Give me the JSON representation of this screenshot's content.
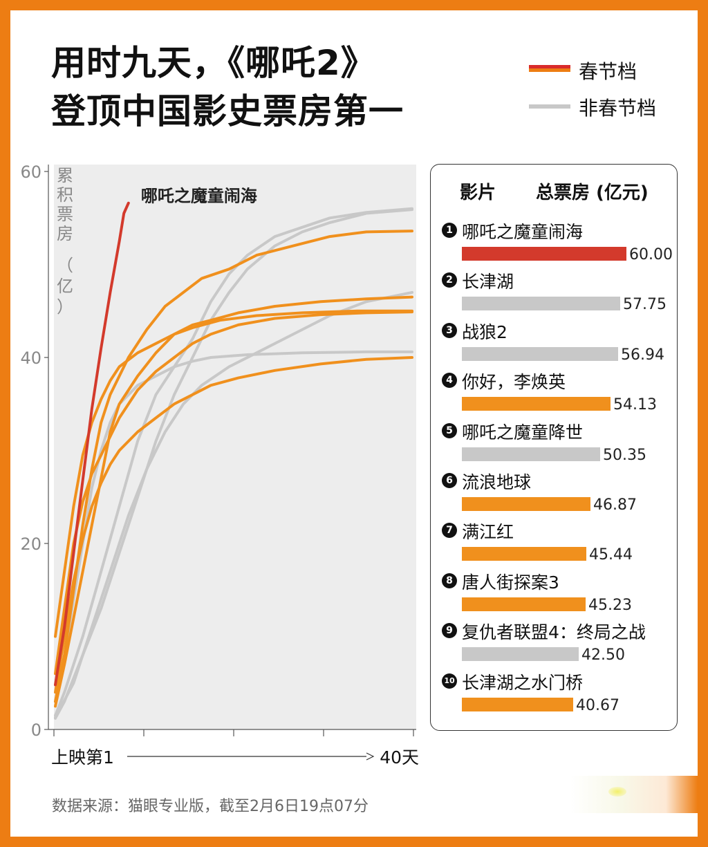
{
  "title": [
    "用时九天，《哪吒2》",
    "登顶中国影史票房第一"
  ],
  "legend": [
    {
      "label": "春节档",
      "color": "#ED7D13",
      "accent": "#D92B2B"
    },
    {
      "label": "非春节档",
      "color": "#C8C8C8"
    }
  ],
  "chart_data": {
    "type": "line",
    "ylabel": "累积票房（亿）",
    "ylim": [
      0,
      60
    ],
    "yticks": [
      0,
      20,
      40,
      60
    ],
    "x_start_label": "上映第1",
    "x_end_label": "40天",
    "xlim": [
      1,
      40
    ],
    "highlight_label": "哪吒之魔童闹海",
    "series": [
      {
        "name": "哪吒之魔童闹海",
        "kind": "highlight",
        "color": "#D33A2C",
        "points": [
          [
            1,
            4.8
          ],
          [
            2,
            11
          ],
          [
            3,
            19
          ],
          [
            4,
            26.8
          ],
          [
            5,
            34.5
          ],
          [
            6,
            41
          ],
          [
            7,
            47
          ],
          [
            8,
            52.5
          ],
          [
            8.5,
            55.5
          ],
          [
            9,
            56.6
          ]
        ]
      },
      {
        "name": "长津湖",
        "kind": "non",
        "color": "#C8C8C8",
        "points": [
          [
            1,
            1.5
          ],
          [
            2,
            4
          ],
          [
            4,
            10
          ],
          [
            6,
            17
          ],
          [
            8,
            24
          ],
          [
            10,
            31
          ],
          [
            12,
            36
          ],
          [
            14,
            39
          ],
          [
            16,
            42
          ],
          [
            18,
            46
          ],
          [
            20,
            49
          ],
          [
            22,
            51
          ],
          [
            25,
            53
          ],
          [
            28,
            54
          ],
          [
            31,
            55
          ],
          [
            35,
            55.6
          ],
          [
            40,
            56
          ]
        ]
      },
      {
        "name": "战狼2",
        "kind": "non",
        "color": "#C8C8C8",
        "points": [
          [
            1,
            1.2
          ],
          [
            2,
            3
          ],
          [
            4,
            8
          ],
          [
            6,
            13
          ],
          [
            8,
            19
          ],
          [
            10,
            25
          ],
          [
            12,
            31
          ],
          [
            14,
            36
          ],
          [
            16,
            40
          ],
          [
            18,
            44
          ],
          [
            20,
            47
          ],
          [
            22,
            49.5
          ],
          [
            25,
            52
          ],
          [
            28,
            53.5
          ],
          [
            31,
            54.5
          ],
          [
            35,
            55.5
          ],
          [
            40,
            55.9
          ]
        ]
      },
      {
        "name": "哪吒之魔童降世",
        "kind": "non",
        "color": "#C8C8C8",
        "points": [
          [
            1,
            1.3
          ],
          [
            3,
            5
          ],
          [
            5,
            11
          ],
          [
            7,
            17
          ],
          [
            9,
            23
          ],
          [
            11,
            28
          ],
          [
            13,
            32
          ],
          [
            15,
            35
          ],
          [
            17,
            37
          ],
          [
            20,
            39
          ],
          [
            23,
            40.5
          ],
          [
            27,
            42.5
          ],
          [
            31,
            44.5
          ],
          [
            35,
            46
          ],
          [
            40,
            47
          ]
        ]
      },
      {
        "name": "复仇者联盟4：终局之战",
        "kind": "non",
        "color": "#C8C8C8",
        "points": [
          [
            1,
            3
          ],
          [
            2,
            8
          ],
          [
            3,
            14
          ],
          [
            4,
            20
          ],
          [
            5,
            26
          ],
          [
            6,
            30
          ],
          [
            7,
            33
          ],
          [
            8,
            35
          ],
          [
            10,
            37
          ],
          [
            12,
            38
          ],
          [
            14,
            39
          ],
          [
            16,
            39.6
          ],
          [
            18,
            40
          ],
          [
            22,
            40.3
          ],
          [
            28,
            40.5
          ],
          [
            35,
            40.6
          ],
          [
            40,
            40.6
          ]
        ]
      },
      {
        "name": "你好，李焕英",
        "kind": "spring",
        "color": "#F0901D",
        "points": [
          [
            1,
            3
          ],
          [
            2,
            8
          ],
          [
            3,
            15
          ],
          [
            4,
            22
          ],
          [
            5,
            28
          ],
          [
            6,
            33
          ],
          [
            7,
            36
          ],
          [
            9,
            40
          ],
          [
            11,
            43
          ],
          [
            13,
            45.5
          ],
          [
            15,
            47
          ],
          [
            17,
            48.5
          ],
          [
            20,
            49.5
          ],
          [
            23,
            51
          ],
          [
            27,
            52
          ],
          [
            31,
            53
          ],
          [
            35,
            53.5
          ],
          [
            40,
            53.6
          ]
        ]
      },
      {
        "name": "流浪地球",
        "kind": "spring",
        "color": "#F0901D",
        "points": [
          [
            1,
            2.5
          ],
          [
            2,
            7
          ],
          [
            3,
            12
          ],
          [
            4,
            17
          ],
          [
            5,
            22
          ],
          [
            6,
            27
          ],
          [
            7,
            32
          ],
          [
            8,
            35
          ],
          [
            10,
            38
          ],
          [
            12,
            40.5
          ],
          [
            14,
            42.5
          ],
          [
            16,
            43.5
          ],
          [
            18,
            44
          ],
          [
            21,
            44.8
          ],
          [
            25,
            45.5
          ],
          [
            30,
            46
          ],
          [
            35,
            46.3
          ],
          [
            40,
            46.5
          ]
        ]
      },
      {
        "name": "满江红",
        "kind": "spring",
        "color": "#F0901D",
        "points": [
          [
            1,
            10
          ],
          [
            2,
            17
          ],
          [
            3,
            24
          ],
          [
            4,
            29.5
          ],
          [
            5,
            33
          ],
          [
            6,
            35.5
          ],
          [
            7,
            37.5
          ],
          [
            8,
            39
          ],
          [
            10,
            40.5
          ],
          [
            12,
            41.5
          ],
          [
            14,
            42.5
          ],
          [
            16,
            43.2
          ],
          [
            19,
            44
          ],
          [
            23,
            44.5
          ],
          [
            28,
            44.8
          ],
          [
            34,
            45
          ],
          [
            40,
            45
          ]
        ]
      },
      {
        "name": "唐人街探案3",
        "kind": "spring",
        "color": "#F0901D",
        "points": [
          [
            1,
            6
          ],
          [
            2,
            13
          ],
          [
            3,
            20
          ],
          [
            4,
            24.5
          ],
          [
            5,
            27.5
          ],
          [
            6,
            29.5
          ],
          [
            7,
            31.5
          ],
          [
            8,
            33.5
          ],
          [
            10,
            36.5
          ],
          [
            12,
            38.5
          ],
          [
            14,
            40
          ],
          [
            16,
            41.5
          ],
          [
            18,
            42.5
          ],
          [
            21,
            43.5
          ],
          [
            25,
            44.2
          ],
          [
            30,
            44.6
          ],
          [
            35,
            44.8
          ],
          [
            40,
            44.9
          ]
        ]
      },
      {
        "name": "长津湖之水门桥",
        "kind": "spring",
        "color": "#F0901D",
        "points": [
          [
            1,
            4
          ],
          [
            2,
            10
          ],
          [
            3,
            16
          ],
          [
            4,
            20.5
          ],
          [
            5,
            24
          ],
          [
            6,
            26.5
          ],
          [
            7,
            28.5
          ],
          [
            8,
            30
          ],
          [
            10,
            32
          ],
          [
            12,
            33.5
          ],
          [
            14,
            35
          ],
          [
            16,
            36
          ],
          [
            18,
            37
          ],
          [
            21,
            37.8
          ],
          [
            25,
            38.6
          ],
          [
            30,
            39.3
          ],
          [
            35,
            39.8
          ],
          [
            40,
            40
          ]
        ]
      }
    ]
  },
  "ranking": {
    "header_film": "影片",
    "header_box": "总票房 (亿元)",
    "max": 60,
    "items": [
      {
        "rank": "1",
        "name": "哪吒之魔童闹海",
        "value": 60.0,
        "display": "60.00",
        "color": "#D33A2C"
      },
      {
        "rank": "2",
        "name": "长津湖",
        "value": 57.75,
        "display": "57.75",
        "color": "#C8C8C8"
      },
      {
        "rank": "3",
        "name": "战狼2",
        "value": 56.94,
        "display": "56.94",
        "color": "#C8C8C8"
      },
      {
        "rank": "4",
        "name": "你好，李焕英",
        "value": 54.13,
        "display": "54.13",
        "color": "#F0901D"
      },
      {
        "rank": "5",
        "name": "哪吒之魔童降世",
        "value": 50.35,
        "display": "50.35",
        "color": "#C8C8C8"
      },
      {
        "rank": "6",
        "name": "流浪地球",
        "value": 46.87,
        "display": "46.87",
        "color": "#F0901D"
      },
      {
        "rank": "7",
        "name": "满江红",
        "value": 45.44,
        "display": "45.44",
        "color": "#F0901D"
      },
      {
        "rank": "8",
        "name": "唐人街探案3",
        "value": 45.23,
        "display": "45.23",
        "color": "#F0901D"
      },
      {
        "rank": "9",
        "name": "复仇者联盟4：终局之战",
        "value": 42.5,
        "display": "42.50",
        "color": "#C8C8C8"
      },
      {
        "rank": "10",
        "name": "长津湖之水门桥",
        "value": 40.67,
        "display": "40.67",
        "color": "#F0901D"
      }
    ]
  },
  "source": "数据来源：猫眼专业版，截至2月6日19点07分"
}
